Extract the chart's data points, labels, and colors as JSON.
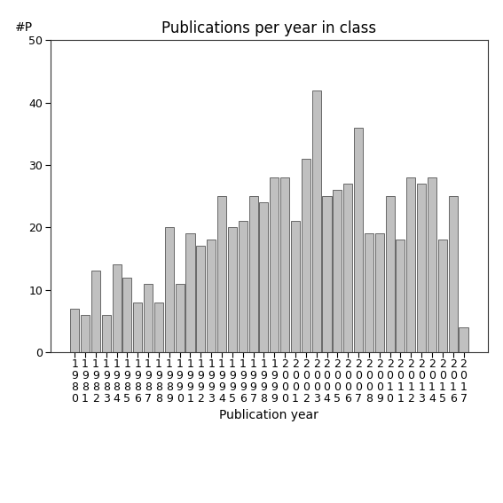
{
  "title": "Publications per year in class",
  "xlabel": "Publication year",
  "ylabel": "#P",
  "years": [
    1980,
    1981,
    1982,
    1983,
    1984,
    1985,
    1986,
    1987,
    1988,
    1989,
    1990,
    1991,
    1992,
    1993,
    1994,
    1995,
    1996,
    1997,
    1998,
    1999,
    2000,
    2001,
    2002,
    2003,
    2004,
    2005,
    2006,
    2007,
    2008,
    2009,
    2010,
    2011,
    2012,
    2013,
    2014,
    2015,
    2016,
    2017
  ],
  "values": [
    7,
    6,
    13,
    6,
    14,
    12,
    8,
    11,
    8,
    20,
    11,
    19,
    17,
    18,
    25,
    20,
    21,
    25,
    24,
    28,
    28,
    21,
    31,
    42,
    25,
    26,
    27,
    36,
    19,
    19,
    25,
    18,
    28,
    27,
    28,
    18,
    25,
    4
  ],
  "bar_color": "#c0c0c0",
  "bar_edge_color": "#555555",
  "ylim": [
    0,
    50
  ],
  "yticks": [
    0,
    10,
    20,
    30,
    40,
    50
  ],
  "bg_color": "#ffffff",
  "title_fontsize": 12,
  "axis_label_fontsize": 10,
  "tick_fontsize": 9
}
